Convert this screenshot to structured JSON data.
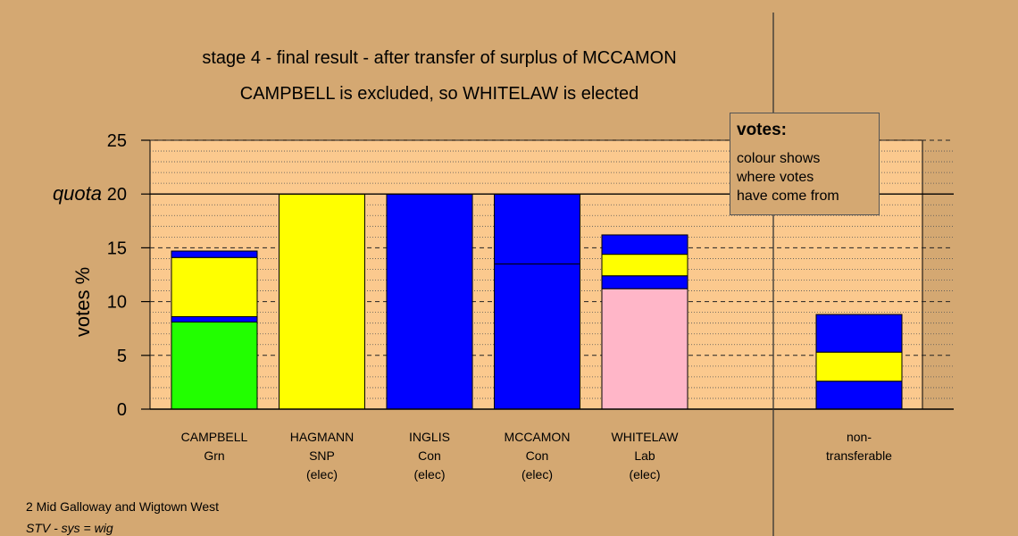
{
  "chart_data": {
    "type": "bar",
    "stacked": true,
    "title": "stage 4 - final result - after transfer of surplus of MCCAMON",
    "subtitle": "CAMPBELL is excluded, so WHITELAW is elected",
    "ylabel": "votes %",
    "quota_label": "quota",
    "quota_value": 20,
    "ylim": [
      0,
      25
    ],
    "yticks": [
      "0",
      "5",
      "10",
      "15",
      "20",
      "25"
    ],
    "ytick_values": [
      0,
      5,
      10,
      15,
      20,
      25
    ],
    "grid": true,
    "bars": [
      {
        "labels": [
          "CAMPBELL",
          "Grn"
        ],
        "segments": [
          {
            "value": 8.1,
            "color": "#22ff00"
          },
          {
            "value": 0.5,
            "color": "#0000ff"
          },
          {
            "value": 5.5,
            "color": "#ffff00"
          },
          {
            "value": 0.6,
            "color": "#0000ff"
          }
        ]
      },
      {
        "labels": [
          "HAGMANN",
          "SNP",
          "(elec)"
        ],
        "segments": [
          {
            "value": 20.0,
            "color": "#ffff00"
          }
        ]
      },
      {
        "labels": [
          "INGLIS",
          "Con",
          "(elec)"
        ],
        "segments": [
          {
            "value": 20.0,
            "color": "#0000ff"
          }
        ]
      },
      {
        "labels": [
          "MCCAMON",
          "Con",
          "(elec)"
        ],
        "segments": [
          {
            "value": 13.5,
            "color": "#0000ff"
          },
          {
            "value": 6.5,
            "color": "#0000ff"
          }
        ]
      },
      {
        "labels": [
          "WHITELAW",
          "Lab",
          "(elec)"
        ],
        "segments": [
          {
            "value": 11.2,
            "color": "#ffb6c8"
          },
          {
            "value": 1.2,
            "color": "#0000ff"
          },
          {
            "value": 2.0,
            "color": "#ffff00"
          },
          {
            "value": 1.8,
            "color": "#0000ff"
          }
        ]
      },
      {
        "labels": [
          "non-",
          "transferable"
        ],
        "segments": [
          {
            "value": 2.6,
            "color": "#0000ff"
          },
          {
            "value": 2.7,
            "color": "#ffff00"
          },
          {
            "value": 3.5,
            "color": "#0000ff"
          }
        ]
      }
    ]
  },
  "legend": {
    "title": "votes:",
    "lines": [
      "colour shows",
      "where votes",
      "have come from"
    ]
  },
  "footer": {
    "ward": "2 Mid Galloway and Wigtown West",
    "system": "STV - sys = wig"
  },
  "colors": {
    "background": "#d4a872",
    "plot_area": "#fbc98e"
  }
}
